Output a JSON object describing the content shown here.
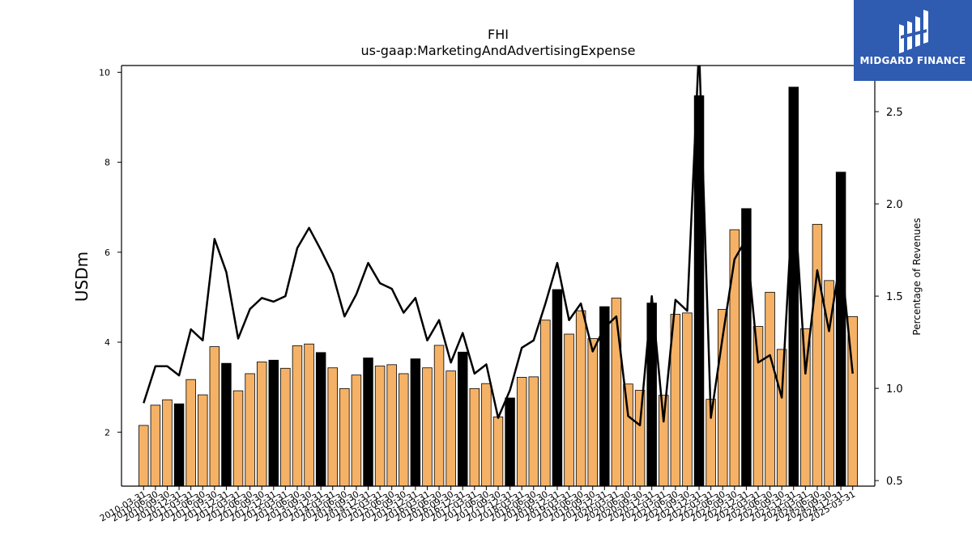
{
  "chart_data": {
    "type": "bar+line",
    "title": "FHI",
    "subtitle": "us-gaap:MarketingAndAdvertisingExpense",
    "ylabel": "USDm",
    "y2label": "Percentage of Revenues",
    "ylim": [
      0.8,
      10.15
    ],
    "y2lim": [
      0.47,
      2.75
    ],
    "yticks": [
      2,
      4,
      6,
      8,
      10
    ],
    "y2ticks": [
      "0.5",
      "1.0",
      "1.5",
      "2.0",
      "2.5"
    ],
    "x_tick_labels": [
      "2010-03-31",
      "2010-06-30",
      "2010-09-30",
      "2010-12-31",
      "2011-03-31",
      "2011-06-30",
      "2011-09-30",
      "2011-12-31",
      "2012-03-31",
      "2012-06-30",
      "2012-09-30",
      "2012-12-31",
      "2013-03-31",
      "2013-06-30",
      "2013-09-30",
      "2013-12-31",
      "2014-03-31",
      "2014-06-30",
      "2014-09-30",
      "2014-12-31",
      "2015-03-31",
      "2015-06-30",
      "2015-09-30",
      "2015-12-31",
      "2016-03-31",
      "2016-06-30",
      "2016-09-30",
      "2016-12-31",
      "2017-03-31",
      "2017-06-30",
      "2017-09-30",
      "2017-12-31",
      "2018-03-31",
      "2018-06-30",
      "2018-09-30",
      "2018-12-31",
      "2019-03-31",
      "2019-06-30",
      "2019-09-30",
      "2019-12-31",
      "2020-03-31",
      "2020-06-30",
      "2020-09-30",
      "2020-12-31",
      "2021-03-31",
      "2021-06-30",
      "2021-09-30",
      "2021-12-31",
      "2022-03-31",
      "2022-06-30",
      "2022-09-30",
      "2022-12-31",
      "2023-03-31",
      "2023-06-30",
      "2023-09-30",
      "2023-12-31",
      "2024-03-31",
      "2024-06-30",
      "2024-09-30",
      "2024-12-31",
      "2025-03-31"
    ],
    "bars": [
      2.15,
      2.6,
      2.72,
      2.63,
      3.17,
      2.83,
      3.9,
      3.53,
      2.92,
      3.3,
      3.56,
      3.6,
      3.42,
      3.92,
      3.96,
      3.77,
      3.43,
      2.97,
      3.27,
      3.65,
      3.47,
      3.5,
      3.3,
      3.63,
      3.43,
      3.93,
      3.36,
      3.78,
      2.97,
      3.08,
      2.34,
      2.76,
      3.22,
      3.23,
      4.49,
      5.17,
      4.18,
      4.7,
      4.08,
      4.79,
      4.98,
      3.07,
      2.93,
      4.87,
      2.82,
      4.62,
      4.65,
      9.48,
      2.73,
      4.73,
      6.5,
      6.97,
      4.35,
      5.11,
      3.84,
      9.67,
      4.3,
      6.62,
      5.37,
      7.78,
      4.57
    ],
    "bar_highlight": [
      false,
      false,
      false,
      true,
      false,
      false,
      false,
      true,
      false,
      false,
      false,
      true,
      false,
      false,
      false,
      true,
      false,
      false,
      false,
      true,
      false,
      false,
      false,
      true,
      false,
      false,
      false,
      true,
      false,
      false,
      false,
      true,
      false,
      false,
      false,
      true,
      false,
      false,
      false,
      true,
      false,
      false,
      false,
      true,
      false,
      false,
      false,
      true,
      false,
      false,
      false,
      true,
      false,
      false,
      false,
      true,
      false,
      false,
      false,
      true,
      false
    ],
    "line_pct": [
      0.92,
      1.12,
      1.12,
      1.07,
      1.32,
      1.26,
      1.81,
      1.63,
      1.27,
      1.43,
      1.49,
      1.47,
      1.5,
      1.76,
      1.87,
      1.75,
      1.62,
      1.39,
      1.51,
      1.68,
      1.57,
      1.54,
      1.41,
      1.49,
      1.26,
      1.37,
      1.14,
      1.3,
      1.08,
      1.13,
      0.84,
      0.99,
      1.22,
      1.26,
      1.46,
      1.68,
      1.37,
      1.46,
      1.2,
      1.33,
      1.39,
      0.85,
      0.8,
      1.5,
      0.82,
      1.48,
      1.42,
      2.85,
      0.84,
      1.28,
      1.7,
      1.81,
      1.14,
      1.18,
      0.95,
      2.1,
      1.08,
      1.64,
      1.31,
      1.72,
      1.08
    ],
    "colors": {
      "bar": "#f5b266",
      "bar_highlight": "#000000",
      "bar_edge": "#000000",
      "line": "#000000"
    },
    "grid": false
  },
  "logo": {
    "text": "MIDGARD FINANCE",
    "bg_color": "#2f5bb0"
  }
}
